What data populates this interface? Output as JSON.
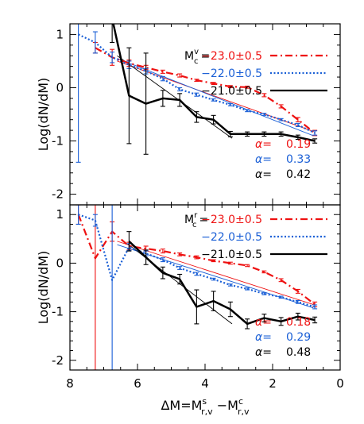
{
  "chart_data": [
    {
      "type": "line",
      "panel": "top",
      "ylabel": "Log(dN/dM)",
      "xlim": [
        8,
        0
      ],
      "ylim": [
        -2.2,
        1.2
      ],
      "yticks": [
        -2,
        -1,
        0,
        1
      ],
      "legend": {
        "placement": "top-right",
        "prefix_main": "M",
        "prefix_sup": "v",
        "prefix_sub": "c",
        "prefix_eq": "=",
        "entries": [
          {
            "label": "−23.0±0.5",
            "color": "#ee1111",
            "style": "dash-dot"
          },
          {
            "label": "−22.0±0.5",
            "color": "#1a5fd6",
            "style": "dotted"
          },
          {
            "label": "−21.0±0.5",
            "color": "#000000",
            "style": "solid"
          }
        ]
      },
      "alpha": [
        {
          "label": "α=",
          "value": "0.19",
          "color": "#ee1111"
        },
        {
          "label": "α=",
          "value": "0.33",
          "color": "#1a5fd6"
        },
        {
          "label": "α=",
          "value": "0.42",
          "color": "#000000"
        }
      ],
      "series": [
        {
          "color": "#ee1111",
          "style": "dash-dot",
          "width": 2.2,
          "x": [
            7.25,
            6.75,
            6.25,
            5.75,
            5.25,
            4.75,
            4.25,
            3.75,
            3.25,
            2.75,
            2.25,
            1.75,
            1.25,
            0.75
          ],
          "y": [
            0.75,
            0.57,
            0.46,
            0.38,
            0.3,
            0.23,
            0.14,
            0.08,
            0.02,
            0.01,
            -0.14,
            -0.35,
            -0.6,
            -0.85
          ],
          "err": [
            0.1,
            0.15,
            0.06,
            0.04,
            0.03,
            0.03,
            0.02,
            0.02,
            0.02,
            0.02,
            0.03,
            0.03,
            0.04,
            0.05
          ]
        },
        {
          "color": "#1a5fd6",
          "style": "dotted",
          "width": 2.2,
          "x": [
            7.75,
            7.25,
            6.75,
            6.25,
            5.75,
            5.25,
            4.75,
            4.25,
            3.75,
            3.25,
            2.75,
            2.25,
            1.75,
            1.25,
            0.75
          ],
          "y": [
            1.0,
            0.85,
            0.57,
            0.43,
            0.31,
            0.17,
            -0.03,
            -0.13,
            -0.23,
            -0.32,
            -0.43,
            -0.5,
            -0.6,
            -0.7,
            -0.85
          ],
          "err": [
            2.4,
            0.2,
            0.1,
            0.07,
            0.05,
            0.04,
            0.03,
            0.03,
            0.02,
            0.02,
            0.02,
            0.02,
            0.02,
            0.03,
            0.04
          ]
        },
        {
          "color": "#000000",
          "style": "solid",
          "width": 2.5,
          "x": [
            6.75,
            6.25,
            5.75,
            5.25,
            4.75,
            4.25,
            3.75,
            3.25,
            2.75,
            2.25,
            1.75,
            1.25,
            0.75
          ],
          "y": [
            1.3,
            -0.15,
            -0.3,
            -0.2,
            -0.23,
            -0.55,
            -0.6,
            -0.87,
            -0.87,
            -0.87,
            -0.87,
            -0.93,
            -1.0
          ],
          "err": [
            0.45,
            0.9,
            0.95,
            0.15,
            0.12,
            0.1,
            0.08,
            0.05,
            0.04,
            0.04,
            0.04,
            0.04,
            0.04
          ]
        }
      ],
      "fits": [
        {
          "color": "#ee1111",
          "x": [
            6.6,
            0.8
          ],
          "y": [
            0.5,
            -0.82
          ]
        },
        {
          "color": "#1a5fd6",
          "x": [
            6.6,
            0.8
          ],
          "y": [
            0.55,
            -0.9
          ]
        },
        {
          "color": "#000000",
          "x": [
            6.6,
            3.2
          ],
          "y": [
            0.6,
            -0.95
          ]
        }
      ]
    },
    {
      "type": "line",
      "panel": "bottom",
      "ylabel": "Log(dN/dM)",
      "xlabel_main": "ΔM=M",
      "xlabel_sup1": "s",
      "xlabel_sub1": "r,v",
      "xlabel_mid": " −M",
      "xlabel_sup2": "c",
      "xlabel_sub2": "r,v",
      "xlim": [
        8,
        0
      ],
      "ylim": [
        -2.2,
        1.2
      ],
      "xticks": [
        8,
        6,
        4,
        2,
        0
      ],
      "yticks": [
        -2,
        -1,
        0,
        1
      ],
      "legend": {
        "placement": "top-right",
        "prefix_main": "M",
        "prefix_sup": "r",
        "prefix_sub": "c",
        "prefix_eq": "=",
        "entries": [
          {
            "label": "−23.0±0.5",
            "color": "#ee1111",
            "style": "dash-dot"
          },
          {
            "label": "−22.0±0.5",
            "color": "#1a5fd6",
            "style": "dotted"
          },
          {
            "label": "−21.0±0.5",
            "color": "#000000",
            "style": "solid"
          }
        ]
      },
      "alpha": [
        {
          "label": "α=",
          "value": "0.18",
          "color": "#ee1111"
        },
        {
          "label": "α=",
          "value": "0.29",
          "color": "#1a5fd6"
        },
        {
          "label": "α=",
          "value": "0.48",
          "color": "#000000"
        }
      ],
      "series": [
        {
          "color": "#ee1111",
          "style": "dash-dot",
          "width": 2.2,
          "x": [
            7.75,
            7.25,
            6.75,
            6.25,
            5.75,
            5.25,
            4.75,
            4.25,
            3.75,
            3.25,
            2.75,
            2.25,
            1.75,
            1.25,
            0.75
          ],
          "y": [
            1.0,
            0.1,
            0.65,
            0.35,
            0.3,
            0.25,
            0.18,
            0.12,
            0.05,
            0.0,
            -0.05,
            -0.18,
            -0.35,
            -0.58,
            -0.85
          ],
          "err": [
            0.2,
            2.3,
            0.2,
            0.08,
            0.05,
            0.04,
            0.03,
            0.03,
            0.02,
            0.02,
            0.02,
            0.02,
            0.03,
            0.04,
            0.05
          ]
        },
        {
          "color": "#1a5fd6",
          "style": "dotted",
          "width": 2.2,
          "x": [
            7.75,
            7.25,
            6.75,
            6.25,
            5.75,
            5.25,
            4.75,
            4.25,
            3.75,
            3.25,
            2.75,
            2.25,
            1.75,
            1.25,
            0.75
          ],
          "y": [
            1.0,
            0.88,
            -0.35,
            0.33,
            0.2,
            0.07,
            -0.1,
            -0.22,
            -0.33,
            -0.45,
            -0.53,
            -0.63,
            -0.7,
            -0.8,
            -0.9
          ],
          "err": [
            0.2,
            0.12,
            2.2,
            0.07,
            0.05,
            0.04,
            0.03,
            0.03,
            0.02,
            0.02,
            0.02,
            0.02,
            0.02,
            0.03,
            0.04
          ]
        },
        {
          "color": "#000000",
          "style": "solid",
          "width": 2.5,
          "x": [
            6.25,
            5.75,
            5.25,
            4.75,
            4.25,
            3.75,
            3.25,
            2.75,
            2.25,
            1.75,
            1.25,
            0.75
          ],
          "y": [
            0.45,
            0.12,
            -0.2,
            -0.33,
            -0.9,
            -0.78,
            -0.95,
            -1.25,
            -1.13,
            -1.2,
            -1.1,
            -1.17
          ],
          "err": [
            0.2,
            0.15,
            0.12,
            0.1,
            0.35,
            0.2,
            0.15,
            0.1,
            0.08,
            0.08,
            0.07,
            0.06
          ]
        }
      ],
      "fits": [
        {
          "color": "#ee1111",
          "x": [
            6.6,
            0.8
          ],
          "y": [
            0.45,
            -0.85
          ]
        },
        {
          "color": "#1a5fd6",
          "x": [
            6.6,
            0.8
          ],
          "y": [
            0.38,
            -0.92
          ]
        },
        {
          "color": "#000000",
          "x": [
            6.3,
            3.2
          ],
          "y": [
            0.4,
            -1.25
          ]
        }
      ]
    }
  ]
}
